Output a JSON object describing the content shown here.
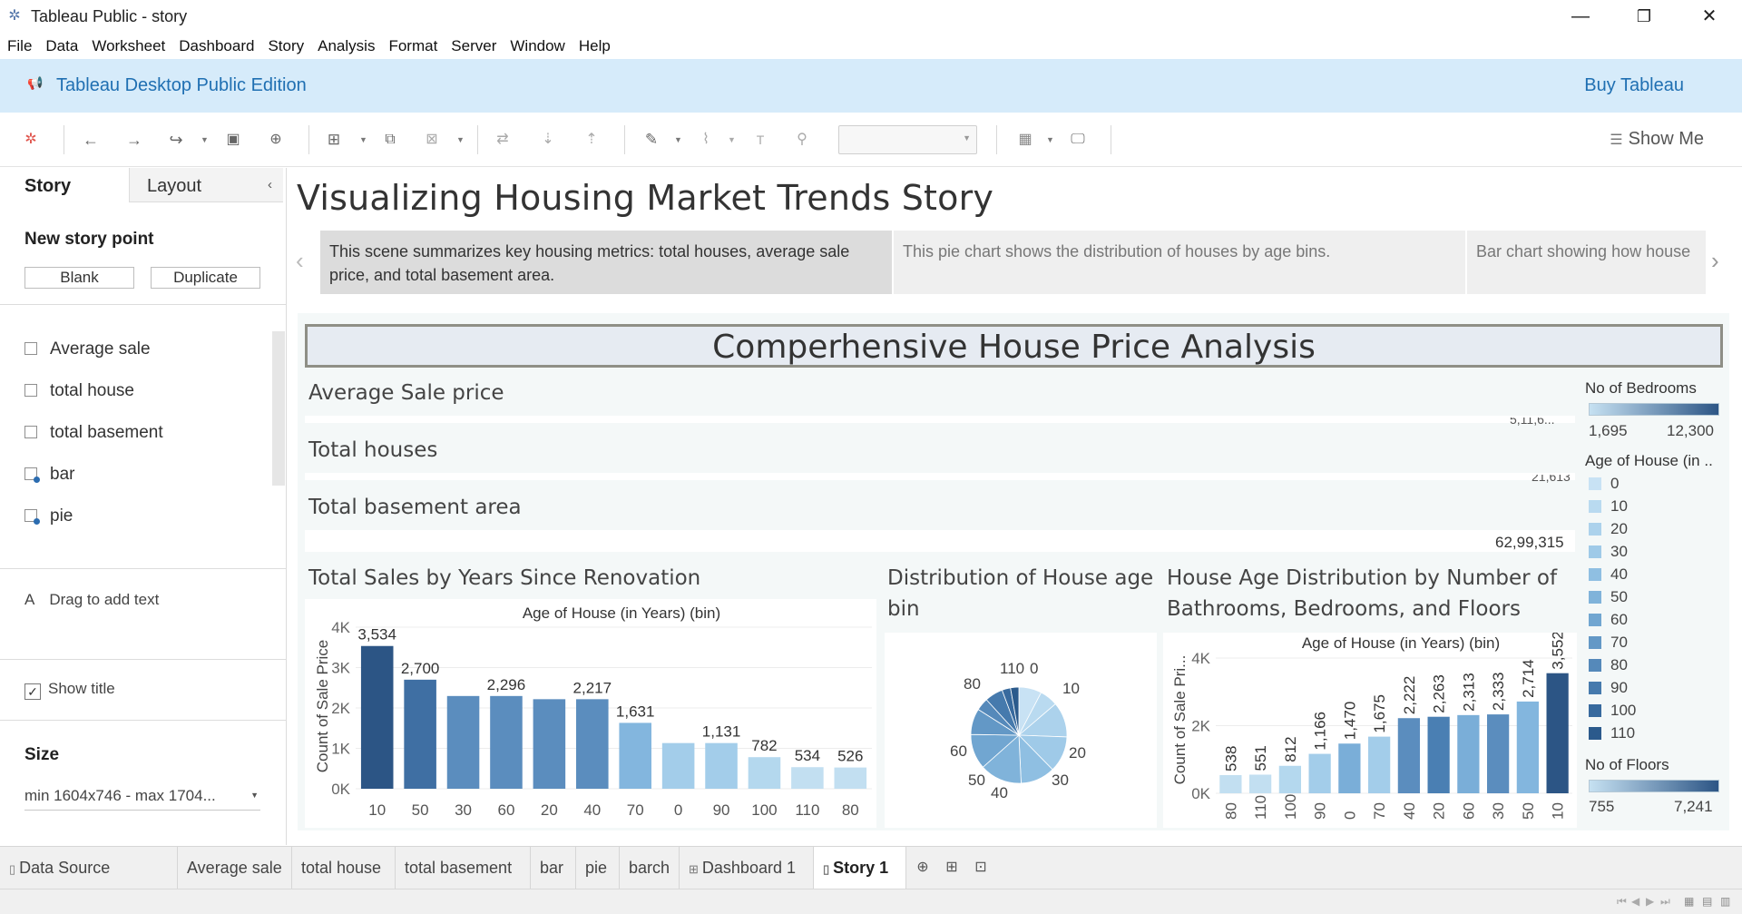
{
  "window": {
    "title": "Tableau Public - story",
    "minimize": "—",
    "restore": "❐",
    "close": "✕"
  },
  "menu": [
    "File",
    "Data",
    "Worksheet",
    "Dashboard",
    "Story",
    "Analysis",
    "Format",
    "Server",
    "Window",
    "Help"
  ],
  "banner": {
    "edition": "Tableau Desktop Public Edition",
    "buy": "Buy Tableau"
  },
  "toolbar": {
    "show_me": "Show Me"
  },
  "left_panel": {
    "tab_story": "Story",
    "tab_layout": "Layout",
    "new_story_point": "New story point",
    "blank": "Blank",
    "duplicate": "Duplicate",
    "sheets": [
      {
        "label": "Average sale",
        "type": "sheet"
      },
      {
        "label": "total house",
        "type": "sheet"
      },
      {
        "label": "total basement",
        "type": "sheet"
      },
      {
        "label": "bar",
        "type": "sheet-linked"
      },
      {
        "label": "pie",
        "type": "sheet-linked"
      }
    ],
    "drag_text": "Drag to add text",
    "drag_text_icon": "A",
    "show_title": "Show title",
    "show_title_checked": true,
    "size_label": "Size",
    "size_value": "min 1604x746 - max 1704..."
  },
  "story": {
    "title": "Visualizing Housing Market Trends Story",
    "points": [
      {
        "text": "This scene summarizes key housing metrics: total houses, average sale price, and total basement area.",
        "active": true
      },
      {
        "text": "This pie chart shows the distribution of houses by age bins.",
        "active": false
      },
      {
        "text": "Bar chart showing how house",
        "active": false
      }
    ]
  },
  "dashboard": {
    "title": "Comperhensive House Price Analysis",
    "kpis": [
      {
        "label": "Average Sale price",
        "value": "5,11,6...",
        "clipped": true
      },
      {
        "label": "Total houses",
        "value": "21,613",
        "clipped": true
      },
      {
        "label": "Total basement area",
        "value": "62,99,315",
        "clipped": false
      }
    ]
  },
  "charts": {
    "bar_renovation": {
      "title": "Total Sales by Years Since Renovation",
      "header": "Age of House (in Years) (bin)",
      "ylabel": "Count of Sale Price",
      "yticks": [
        "4K",
        "3K",
        "2K",
        "1K",
        "0K"
      ]
    },
    "pie_age": {
      "title": "Distribution of House age bin",
      "labels": [
        "110",
        "0",
        "10",
        "20",
        "30",
        "40",
        "50",
        "60",
        "80"
      ]
    },
    "bar_age_rooms": {
      "title": "House Age Distribution by Number of Bathrooms, Bedrooms, and Floors",
      "header": "Age of House (in Years) (bin)",
      "ylabel": "Count of Sale Pri...",
      "yticks": [
        "4K",
        "2K",
        "0K"
      ]
    }
  },
  "legends": {
    "bedrooms": {
      "title": "No of Bedrooms",
      "min": "1,695",
      "max": "12,300"
    },
    "age": {
      "title": "Age of House (in ..",
      "items": [
        "0",
        "10",
        "20",
        "30",
        "40",
        "50",
        "60",
        "70",
        "80",
        "90",
        "100",
        "110"
      ]
    },
    "floors": {
      "title": "No of Floors",
      "min": "755",
      "max": "7,241"
    }
  },
  "sheet_tabs": [
    {
      "label": "Data Source",
      "icon": "▯",
      "active": false
    },
    {
      "label": "Average sale",
      "icon": "",
      "active": false
    },
    {
      "label": "total house",
      "icon": "",
      "active": false
    },
    {
      "label": "total basement",
      "icon": "",
      "active": false
    },
    {
      "label": "bar",
      "icon": "",
      "active": false
    },
    {
      "label": "pie",
      "icon": "",
      "active": false
    },
    {
      "label": "barch",
      "icon": "",
      "active": false
    },
    {
      "label": "Dashboard 1",
      "icon": "⊞",
      "active": false
    },
    {
      "label": "Story 1",
      "icon": "▯",
      "active": true
    }
  ],
  "colors": {
    "banner_bg": "#d6ebfa",
    "accent": "#1f6fb2",
    "bar_dark": "#2c5585",
    "bar_light": "#a8d0ec"
  },
  "chart_data": [
    {
      "type": "bar",
      "title": "Total Sales by Years Since Renovation",
      "xlabel": "Age of House (in Years) (bin)",
      "ylabel": "Count of Sale Price",
      "categories": [
        "10",
        "50",
        "30",
        "60",
        "20",
        "40",
        "70",
        "0",
        "90",
        "100",
        "110",
        "80"
      ],
      "values": [
        3534,
        2700,
        2296,
        2296,
        2217,
        2217,
        1631,
        1131,
        1131,
        782,
        534,
        526
      ],
      "labels": [
        "3,534",
        "2,700",
        "",
        "2,296",
        "",
        "2,217",
        "1,631",
        "",
        "1,131",
        "782",
        "534",
        "526"
      ],
      "colors": [
        "#2c5585",
        "#3f6fa3",
        "#5b8dbe",
        "#5b8dbe",
        "#5b8dbe",
        "#5b8dbe",
        "#83b6de",
        "#a3cdea",
        "#a3cdea",
        "#b4d8ee",
        "#c2dff1",
        "#c2dff1"
      ],
      "ylim": [
        0,
        4000
      ],
      "yticks": [
        0,
        1000,
        2000,
        3000,
        4000
      ]
    },
    {
      "type": "pie",
      "title": "Distribution of House age bin",
      "categories": [
        "0",
        "10",
        "20",
        "30",
        "40",
        "50",
        "60",
        "70",
        "80",
        "90",
        "100",
        "110"
      ],
      "values": [
        1470,
        1166,
        2263,
        2313,
        2222,
        2714,
        2263,
        1675,
        812,
        1166,
        551,
        538
      ],
      "colors": [
        "#c8e2f4",
        "#b9daf0",
        "#acd2ec",
        "#9fcae8",
        "#8fbfe2",
        "#80b3da",
        "#71a6d1",
        "#6398c6",
        "#5589ba",
        "#467aad",
        "#386a9e",
        "#2b5a8c"
      ]
    },
    {
      "type": "bar",
      "title": "House Age Distribution by Number of Bathrooms, Bedrooms, and Floors",
      "xlabel": "Age of House (in Years) (bin)",
      "ylabel": "Count of Sale Price",
      "categories": [
        "80",
        "110",
        "100",
        "90",
        "0",
        "70",
        "40",
        "20",
        "60",
        "30",
        "50",
        "10"
      ],
      "values": [
        538,
        551,
        812,
        1166,
        1470,
        1675,
        2222,
        2263,
        2313,
        2333,
        2714,
        3552
      ],
      "labels": [
        "538",
        "551",
        "812",
        "1,166",
        "1,470",
        "1,675",
        "2,222",
        "2,263",
        "2,313",
        "2,333",
        "2,714",
        "3,552"
      ],
      "colors": [
        "#c2dff1",
        "#c2dff1",
        "#b4d8ee",
        "#a3cdea",
        "#7aaed8",
        "#a3cdea",
        "#5b8dbe",
        "#4a7fb3",
        "#7aaed8",
        "#5b8dbe",
        "#83b6de",
        "#2c5585"
      ],
      "ylim": [
        0,
        4000
      ],
      "yticks": [
        0,
        2000,
        4000
      ]
    }
  ]
}
